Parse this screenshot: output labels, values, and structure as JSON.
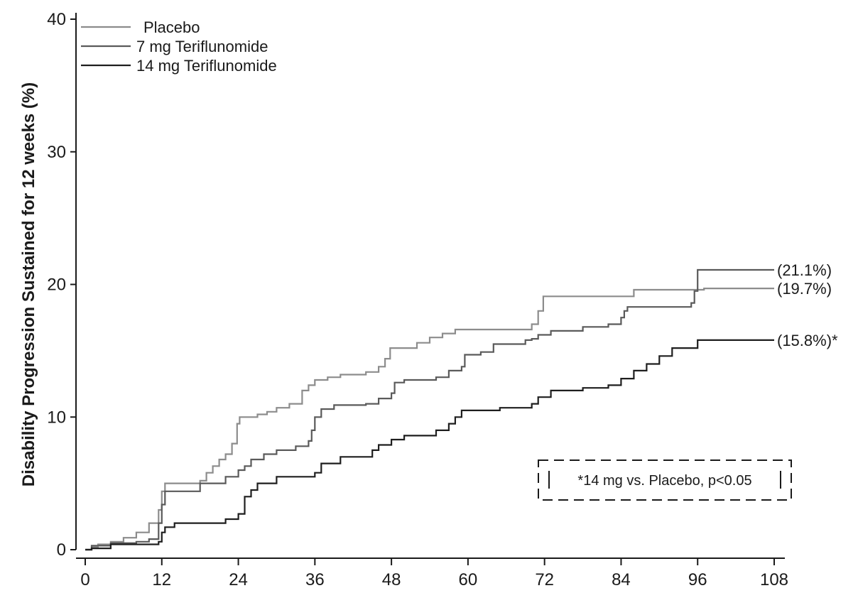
{
  "chart_data": {
    "type": "line",
    "step": true,
    "title": "",
    "xlabel": "",
    "ylabel": "Disability Progression Sustained for 12 weeks (%)",
    "xlim": [
      0,
      108
    ],
    "ylim": [
      0,
      40
    ],
    "xticks": [
      "0",
      "12",
      "24",
      "36",
      "48",
      "60",
      "72",
      "84",
      "96",
      "108"
    ],
    "yticks": [
      "0",
      "10",
      "20",
      "30",
      "40"
    ],
    "grid": false,
    "legend": {
      "position": "top-left",
      "entries": [
        "Placebo",
        "7 mg Teriflunomide",
        "14 mg Teriflunomide"
      ]
    },
    "series": [
      {
        "name": "Placebo",
        "color": "#8c8c8c",
        "end_label": "(19.7%)",
        "points": [
          [
            0,
            0
          ],
          [
            1,
            0.2
          ],
          [
            2,
            0.4
          ],
          [
            4,
            0.6
          ],
          [
            6,
            0.9
          ],
          [
            8,
            1.3
          ],
          [
            10,
            2.0
          ],
          [
            11.5,
            3.0
          ],
          [
            12,
            4.4
          ],
          [
            12.5,
            5.0
          ],
          [
            18,
            5.2
          ],
          [
            19,
            5.8
          ],
          [
            20,
            6.3
          ],
          [
            21,
            6.8
          ],
          [
            22,
            7.2
          ],
          [
            23,
            8.0
          ],
          [
            23.8,
            9.5
          ],
          [
            24.2,
            10.0
          ],
          [
            27,
            10.2
          ],
          [
            28.5,
            10.4
          ],
          [
            30,
            10.7
          ],
          [
            32,
            11.0
          ],
          [
            34,
            12.0
          ],
          [
            35,
            12.4
          ],
          [
            36,
            12.8
          ],
          [
            38,
            13.0
          ],
          [
            40,
            13.2
          ],
          [
            44,
            13.4
          ],
          [
            46,
            13.8
          ],
          [
            47,
            14.4
          ],
          [
            47.8,
            15.2
          ],
          [
            52,
            15.6
          ],
          [
            54,
            16.0
          ],
          [
            56,
            16.3
          ],
          [
            58,
            16.6
          ],
          [
            70,
            17.0
          ],
          [
            71,
            18.0
          ],
          [
            71.8,
            19.1
          ],
          [
            86,
            19.6
          ],
          [
            97,
            19.7
          ],
          [
            108,
            19.7
          ]
        ]
      },
      {
        "name": "7 mg Teriflunomide",
        "color": "#5a5a5a",
        "end_label": "(21.1%)",
        "points": [
          [
            0,
            0
          ],
          [
            1,
            0.3
          ],
          [
            4,
            0.5
          ],
          [
            8,
            0.6
          ],
          [
            10,
            0.8
          ],
          [
            11.5,
            2.0
          ],
          [
            12,
            3.4
          ],
          [
            12.5,
            4.4
          ],
          [
            18,
            5.0
          ],
          [
            22,
            5.5
          ],
          [
            24,
            6.0
          ],
          [
            25,
            6.3
          ],
          [
            26,
            6.8
          ],
          [
            28,
            7.2
          ],
          [
            30,
            7.5
          ],
          [
            33,
            7.8
          ],
          [
            35,
            8.2
          ],
          [
            35.5,
            9.0
          ],
          [
            36,
            10.0
          ],
          [
            37,
            10.6
          ],
          [
            39,
            10.9
          ],
          [
            44,
            11.0
          ],
          [
            46,
            11.4
          ],
          [
            48,
            11.8
          ],
          [
            48.5,
            12.6
          ],
          [
            50,
            12.8
          ],
          [
            55,
            13.0
          ],
          [
            57,
            13.5
          ],
          [
            59,
            13.8
          ],
          [
            59.5,
            14.7
          ],
          [
            62,
            14.9
          ],
          [
            64,
            15.5
          ],
          [
            69,
            15.8
          ],
          [
            70,
            15.9
          ],
          [
            71,
            16.2
          ],
          [
            73,
            16.5
          ],
          [
            78,
            16.8
          ],
          [
            82,
            17.0
          ],
          [
            84,
            17.5
          ],
          [
            84.5,
            18.0
          ],
          [
            85,
            18.3
          ],
          [
            95,
            18.6
          ],
          [
            95.5,
            19.5
          ],
          [
            96,
            21.1
          ],
          [
            108,
            21.1
          ]
        ]
      },
      {
        "name": "14 mg Teriflunomide",
        "color": "#1e1e1e",
        "end_label": "(15.8%)*",
        "points": [
          [
            0,
            0
          ],
          [
            1,
            0.1
          ],
          [
            4,
            0.4
          ],
          [
            11.5,
            0.6
          ],
          [
            12,
            1.3
          ],
          [
            12.5,
            1.7
          ],
          [
            14,
            2.0
          ],
          [
            22,
            2.3
          ],
          [
            24,
            2.7
          ],
          [
            25,
            4.0
          ],
          [
            26,
            4.5
          ],
          [
            27,
            5.0
          ],
          [
            30,
            5.5
          ],
          [
            36,
            5.8
          ],
          [
            37,
            6.5
          ],
          [
            40,
            7.0
          ],
          [
            45,
            7.5
          ],
          [
            46,
            7.9
          ],
          [
            48,
            8.3
          ],
          [
            50,
            8.6
          ],
          [
            55,
            9.0
          ],
          [
            57,
            9.5
          ],
          [
            58,
            10.0
          ],
          [
            59,
            10.5
          ],
          [
            65,
            10.7
          ],
          [
            70,
            11.0
          ],
          [
            71,
            11.5
          ],
          [
            73,
            12.0
          ],
          [
            78,
            12.2
          ],
          [
            82,
            12.4
          ],
          [
            84,
            12.9
          ],
          [
            86,
            13.5
          ],
          [
            88,
            14.0
          ],
          [
            90,
            14.6
          ],
          [
            92,
            15.2
          ],
          [
            96,
            15.8
          ],
          [
            108,
            15.8
          ]
        ]
      }
    ],
    "annotation": "*14 mg vs. Placebo, p<0.05"
  }
}
